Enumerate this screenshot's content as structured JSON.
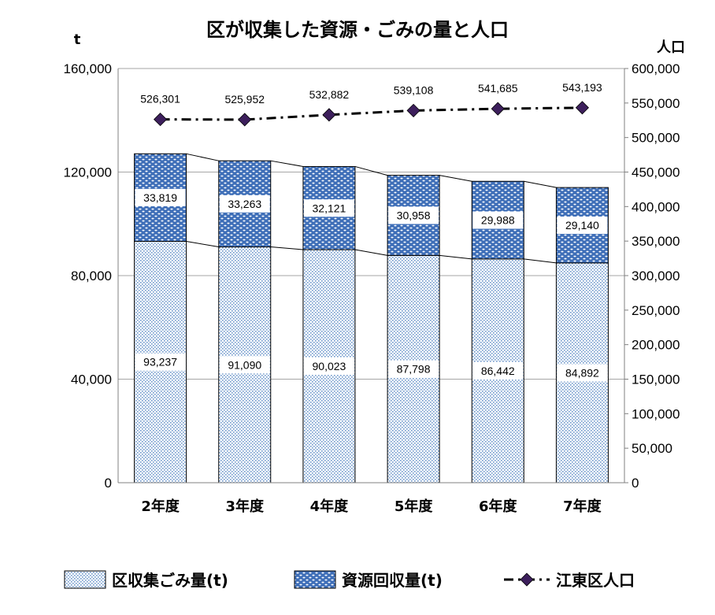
{
  "chart_data": {
    "type": "bar",
    "title": "区が収集した資源・ごみの量と人口",
    "ylabel_left": "t",
    "ylabel_right": "人口",
    "categories": [
      "2年度",
      "3年度",
      "4年度",
      "5年度",
      "6年度",
      "7年度"
    ],
    "ylim_left": [
      0,
      160000
    ],
    "ylim_right": [
      0,
      600000
    ],
    "yticks_left": [
      "0",
      "40,000",
      "80,000",
      "120,000",
      "160,000"
    ],
    "yticks_right": [
      "0",
      "50,000",
      "100,000",
      "150,000",
      "200,000",
      "250,000",
      "300,000",
      "350,000",
      "400,000",
      "450,000",
      "500,000",
      "550,000",
      "600,000"
    ],
    "grid": true,
    "legend_position": "bottom",
    "series": [
      {
        "name": "区収集ごみ量(t)",
        "type": "bar",
        "stack": "main",
        "axis": "left",
        "color": "#cfe0f3",
        "values": [
          93237,
          91090,
          90023,
          87798,
          86442,
          84892
        ],
        "labels": [
          "93,237",
          "91,090",
          "90,023",
          "87,798",
          "86,442",
          "84,892"
        ]
      },
      {
        "name": "資源回収量(t)",
        "type": "bar",
        "stack": "main",
        "axis": "left",
        "color": "#3f6fb8",
        "values": [
          33819,
          33263,
          32121,
          30958,
          29988,
          29140
        ],
        "labels": [
          "33,819",
          "33,263",
          "32,121",
          "30,958",
          "29,988",
          "29,140"
        ]
      },
      {
        "name": "江東区人口",
        "type": "line",
        "axis": "right",
        "color": "#000000",
        "marker_color": "#3d1f5c",
        "values": [
          526301,
          525952,
          532882,
          539108,
          541685,
          543193
        ],
        "labels": [
          "526,301",
          "525,952",
          "532,882",
          "539,108",
          "541,685",
          "543,193"
        ]
      }
    ]
  }
}
